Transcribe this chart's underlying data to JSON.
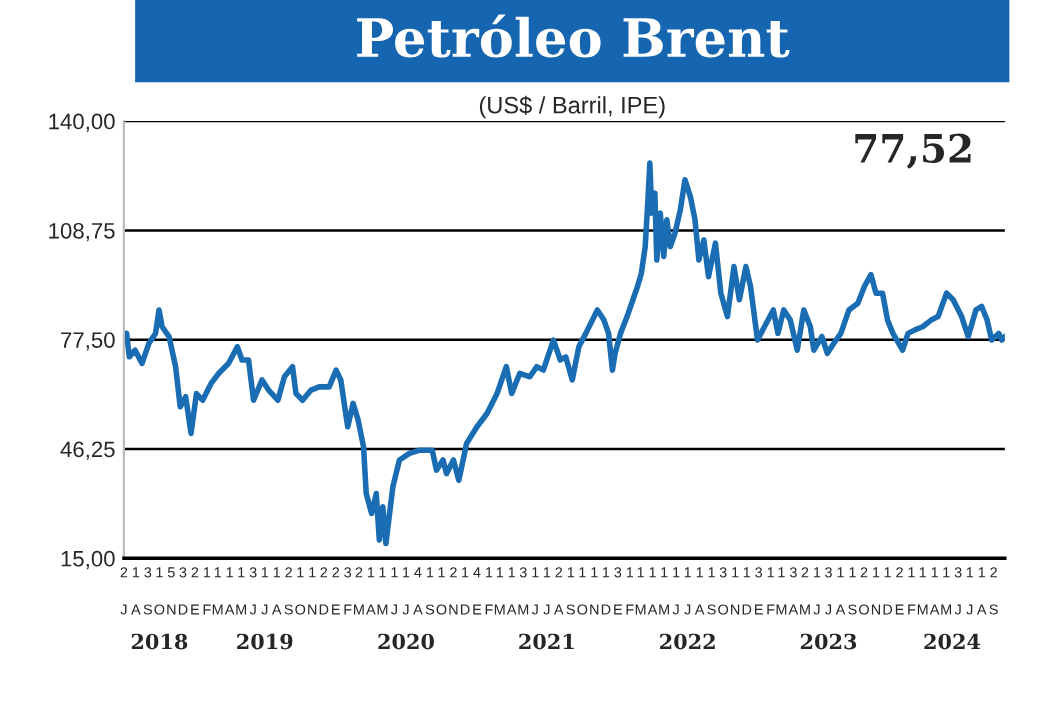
{
  "chart_data": {
    "type": "line",
    "title": "Petróleo Brent",
    "subtitle": "(US$ / Barril, IPE)",
    "annotations": [
      "77,52",
      "2",
      "1",
      "3",
      "1",
      "5",
      "3",
      "2",
      "1",
      "1",
      "1",
      "1",
      "3",
      "1",
      "1",
      "2",
      "1",
      "1",
      "2",
      "2",
      "3",
      "2",
      "1",
      "1",
      "1",
      "1",
      "4",
      "1",
      "1",
      "2",
      "1",
      "4",
      "1",
      "1",
      "1",
      "3",
      "1",
      "1",
      "2",
      "1",
      "1",
      "1",
      "1",
      "3",
      "1",
      "1",
      "1",
      "1",
      "1",
      "1",
      "1",
      "1",
      "3",
      "1",
      "1",
      "3",
      "1",
      "1",
      "3",
      "2",
      "1",
      "3",
      "1",
      "1",
      "2",
      "1",
      "1",
      "2",
      "1",
      "1",
      "1",
      "1",
      "3",
      "1",
      "1",
      "2",
      "J",
      "A",
      "S",
      "O",
      "N",
      "D",
      "E",
      "F",
      "M",
      "A",
      "M",
      "J",
      "J",
      "A",
      "S",
      "O",
      "N",
      "D",
      "E",
      "F",
      "M",
      "A",
      "M",
      "J",
      "J",
      "A",
      "S",
      "O",
      "N",
      "D",
      "E",
      "F",
      "M",
      "A",
      "M",
      "J",
      "J",
      "A",
      "S",
      "O",
      "N",
      "D",
      "E",
      "F",
      "M",
      "A",
      "M",
      "J",
      "J",
      "A",
      "S",
      "O",
      "N",
      "D",
      "E",
      "F",
      "M",
      "A",
      "M",
      "J",
      "J",
      "A",
      "S",
      "O",
      "N",
      "D",
      "E",
      "F",
      "M",
      "A",
      "M",
      "J",
      "J",
      "A",
      "S"
    ],
    "x": [
      "2018-07-01",
      "2018-07-08",
      "2018-07-15",
      "2018-07-30",
      "2018-08-17",
      "2018-09-04",
      "2018-09-21",
      "2018-09-30",
      "2018-10-08",
      "2018-10-26",
      "2018-11-12",
      "2018-11-24",
      "2018-12-08",
      "2018-12-22",
      "2019-01-05",
      "2019-01-21",
      "2019-02-12",
      "2019-03-04",
      "2019-03-29",
      "2019-04-21",
      "2019-05-03",
      "2019-05-20",
      "2019-06-02",
      "2019-06-24",
      "2019-07-11",
      "2019-08-04",
      "2019-08-21",
      "2019-09-11",
      "2019-09-20",
      "2019-10-07",
      "2019-10-29",
      "2019-11-19",
      "2019-12-15",
      "2020-01-02",
      "2020-01-14",
      "2020-02-01",
      "2020-02-15",
      "2020-02-28",
      "2020-03-13",
      "2020-03-20",
      "2020-04-03",
      "2020-04-15",
      "2020-04-23",
      "2020-05-02",
      "2020-05-10",
      "2020-05-28",
      "2020-06-14",
      "2020-07-10",
      "2020-08-06",
      "2020-09-07",
      "2020-09-18",
      "2020-10-05",
      "2020-10-14",
      "2020-11-01",
      "2020-11-15",
      "2020-12-05",
      "2021-01-01",
      "2021-01-27",
      "2021-02-22",
      "2021-03-18",
      "2021-04-01",
      "2021-04-22",
      "2021-05-18",
      "2021-06-05",
      "2021-06-22",
      "2021-07-18",
      "2021-08-05",
      "2021-08-19",
      "2021-09-05",
      "2021-09-22",
      "2021-10-10",
      "2021-11-09",
      "2021-11-26",
      "2021-12-08",
      "2021-12-18",
      "2021-12-25",
      "2022-01-08",
      "2022-01-25",
      "2022-02-21",
      "2022-03-03",
      "2022-03-13",
      "2022-03-20",
      "2022-03-25",
      "2022-03-30",
      "2022-04-07",
      "2022-04-12",
      "2022-04-21",
      "2022-04-30",
      "2022-05-08",
      "2022-05-17",
      "2022-05-29",
      "2022-06-12",
      "2022-06-24",
      "2022-07-08",
      "2022-07-20",
      "2022-07-30",
      "2022-08-12",
      "2022-08-24",
      "2022-09-11",
      "2022-09-25",
      "2022-10-12",
      "2022-10-29",
      "2022-11-12",
      "2022-11-29",
      "2022-12-11",
      "2022-12-29",
      "2023-01-16",
      "2023-02-08",
      "2023-02-20",
      "2023-03-07",
      "2023-03-24",
      "2023-04-11",
      "2023-04-28",
      "2023-05-15",
      "2023-05-24",
      "2023-06-14",
      "2023-06-28",
      "2023-07-15",
      "2023-08-02",
      "2023-08-23",
      "2023-09-15",
      "2023-10-02",
      "2023-10-19",
      "2023-11-01",
      "2023-11-18",
      "2023-12-01",
      "2023-12-15",
      "2024-01-09",
      "2024-01-23",
      "2024-02-10",
      "2024-03-01",
      "2024-03-23",
      "2024-04-10",
      "2024-05-02",
      "2024-05-19",
      "2024-06-10",
      "2024-06-27",
      "2024-07-17",
      "2024-08-01",
      "2024-08-15",
      "2024-08-27",
      "2024-09-14",
      "2024-09-22",
      "2024-09-30"
    ],
    "series": [
      {
        "color": "#1a6db3",
        "values": [
          78.4,
          79.3,
          72.6,
          74.5,
          70.7,
          76.5,
          79.3,
          86.0,
          81.2,
          78.4,
          69.8,
          58.3,
          61.2,
          50.7,
          62.1,
          60.2,
          65.0,
          67.9,
          70.7,
          75.5,
          71.7,
          71.7,
          60.2,
          66.0,
          63.1,
          60.2,
          66.9,
          69.8,
          62.1,
          60.2,
          63.1,
          64.0,
          64.0,
          68.8,
          66.0,
          52.6,
          59.3,
          54.5,
          46.9,
          33.5,
          27.8,
          33.5,
          20.2,
          29.7,
          19.2,
          35.4,
          43.1,
          45.0,
          45.9,
          45.9,
          40.2,
          43.1,
          39.2,
          43.1,
          37.3,
          47.8,
          52.6,
          56.4,
          62.1,
          69.8,
          62.1,
          67.9,
          66.9,
          69.8,
          68.8,
          77.4,
          71.7,
          72.6,
          66.0,
          75.5,
          79.3,
          86.0,
          83.1,
          79.3,
          68.8,
          73.6,
          79.3,
          84.1,
          92.7,
          96.5,
          104.1,
          117.5,
          128.0,
          113.7,
          119.4,
          100.3,
          113.7,
          101.3,
          111.8,
          104.1,
          107.9,
          114.6,
          123.2,
          118.4,
          111.8,
          100.3,
          106.0,
          95.5,
          105.1,
          90.8,
          84.1,
          98.4,
          88.9,
          98.4,
          92.7,
          77.4,
          81.2,
          86.0,
          79.3,
          86.0,
          83.1,
          74.5,
          86.0,
          81.2,
          74.5,
          78.4,
          73.6,
          76.5,
          79.3,
          86.0,
          87.9,
          92.7,
          96.1,
          90.8,
          90.8,
          83.1,
          79.3,
          74.5,
          79.3,
          80.3,
          81.2,
          83.1,
          84.1,
          90.8,
          88.9,
          84.1,
          78.4,
          86.0,
          87.0,
          83.1,
          77.4,
          79.3,
          77.4,
          78.4
        ]
      }
    ],
    "ylim": [
      15,
      140
    ],
    "yticks": [
      {
        "value": 15,
        "label": "15,00"
      },
      {
        "value": 46.25,
        "label": "46,25"
      },
      {
        "value": 77.5,
        "label": "77,50"
      },
      {
        "value": 108.75,
        "label": "108,75"
      },
      {
        "value": 140,
        "label": "140,00"
      }
    ],
    "xlim": [
      "2018-07-01",
      "2024-09-30"
    ],
    "xticks": [
      {
        "value": "2018-10-01",
        "label": "2018"
      },
      {
        "value": "2019-07-01",
        "label": "2019"
      },
      {
        "value": "2020-07-01",
        "label": "2020"
      },
      {
        "value": "2021-07-01",
        "label": "2021"
      },
      {
        "value": "2022-07-01",
        "label": "2022"
      },
      {
        "value": "2023-07-01",
        "label": "2023"
      },
      {
        "value": "2024-05-16",
        "label": "2024"
      }
    ],
    "grid": "y",
    "legend": false,
    "marker": "none",
    "line_style": "solid"
  }
}
